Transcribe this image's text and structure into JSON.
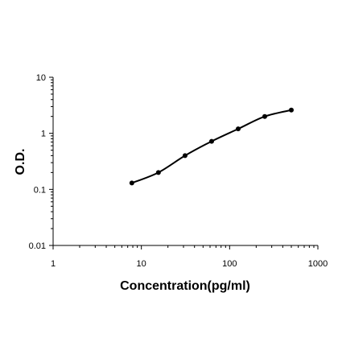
{
  "chart_data": {
    "type": "scatter",
    "title": "",
    "xlabel": "Concentration(pg/ml)",
    "ylabel": "O.D.",
    "x_scale": "log",
    "y_scale": "log",
    "xlim": [
      1,
      1000
    ],
    "ylim": [
      0.01,
      10
    ],
    "x_ticks": [
      1,
      10,
      100,
      1000
    ],
    "x_tick_labels": [
      "1",
      "10",
      "100",
      "1000"
    ],
    "y_ticks": [
      0.01,
      0.1,
      1,
      10
    ],
    "y_tick_labels": [
      "0.01",
      "0.1",
      "1",
      "10"
    ],
    "grid": false,
    "legend": "none",
    "series": [
      {
        "x": [
          7.8,
          15.6,
          31.25,
          62.5,
          125,
          250,
          500
        ],
        "y": [
          0.13,
          0.2,
          0.4,
          0.72,
          1.2,
          2.0,
          2.6
        ],
        "marker": "circle",
        "trendline": "smooth",
        "color": "#000000"
      }
    ]
  }
}
